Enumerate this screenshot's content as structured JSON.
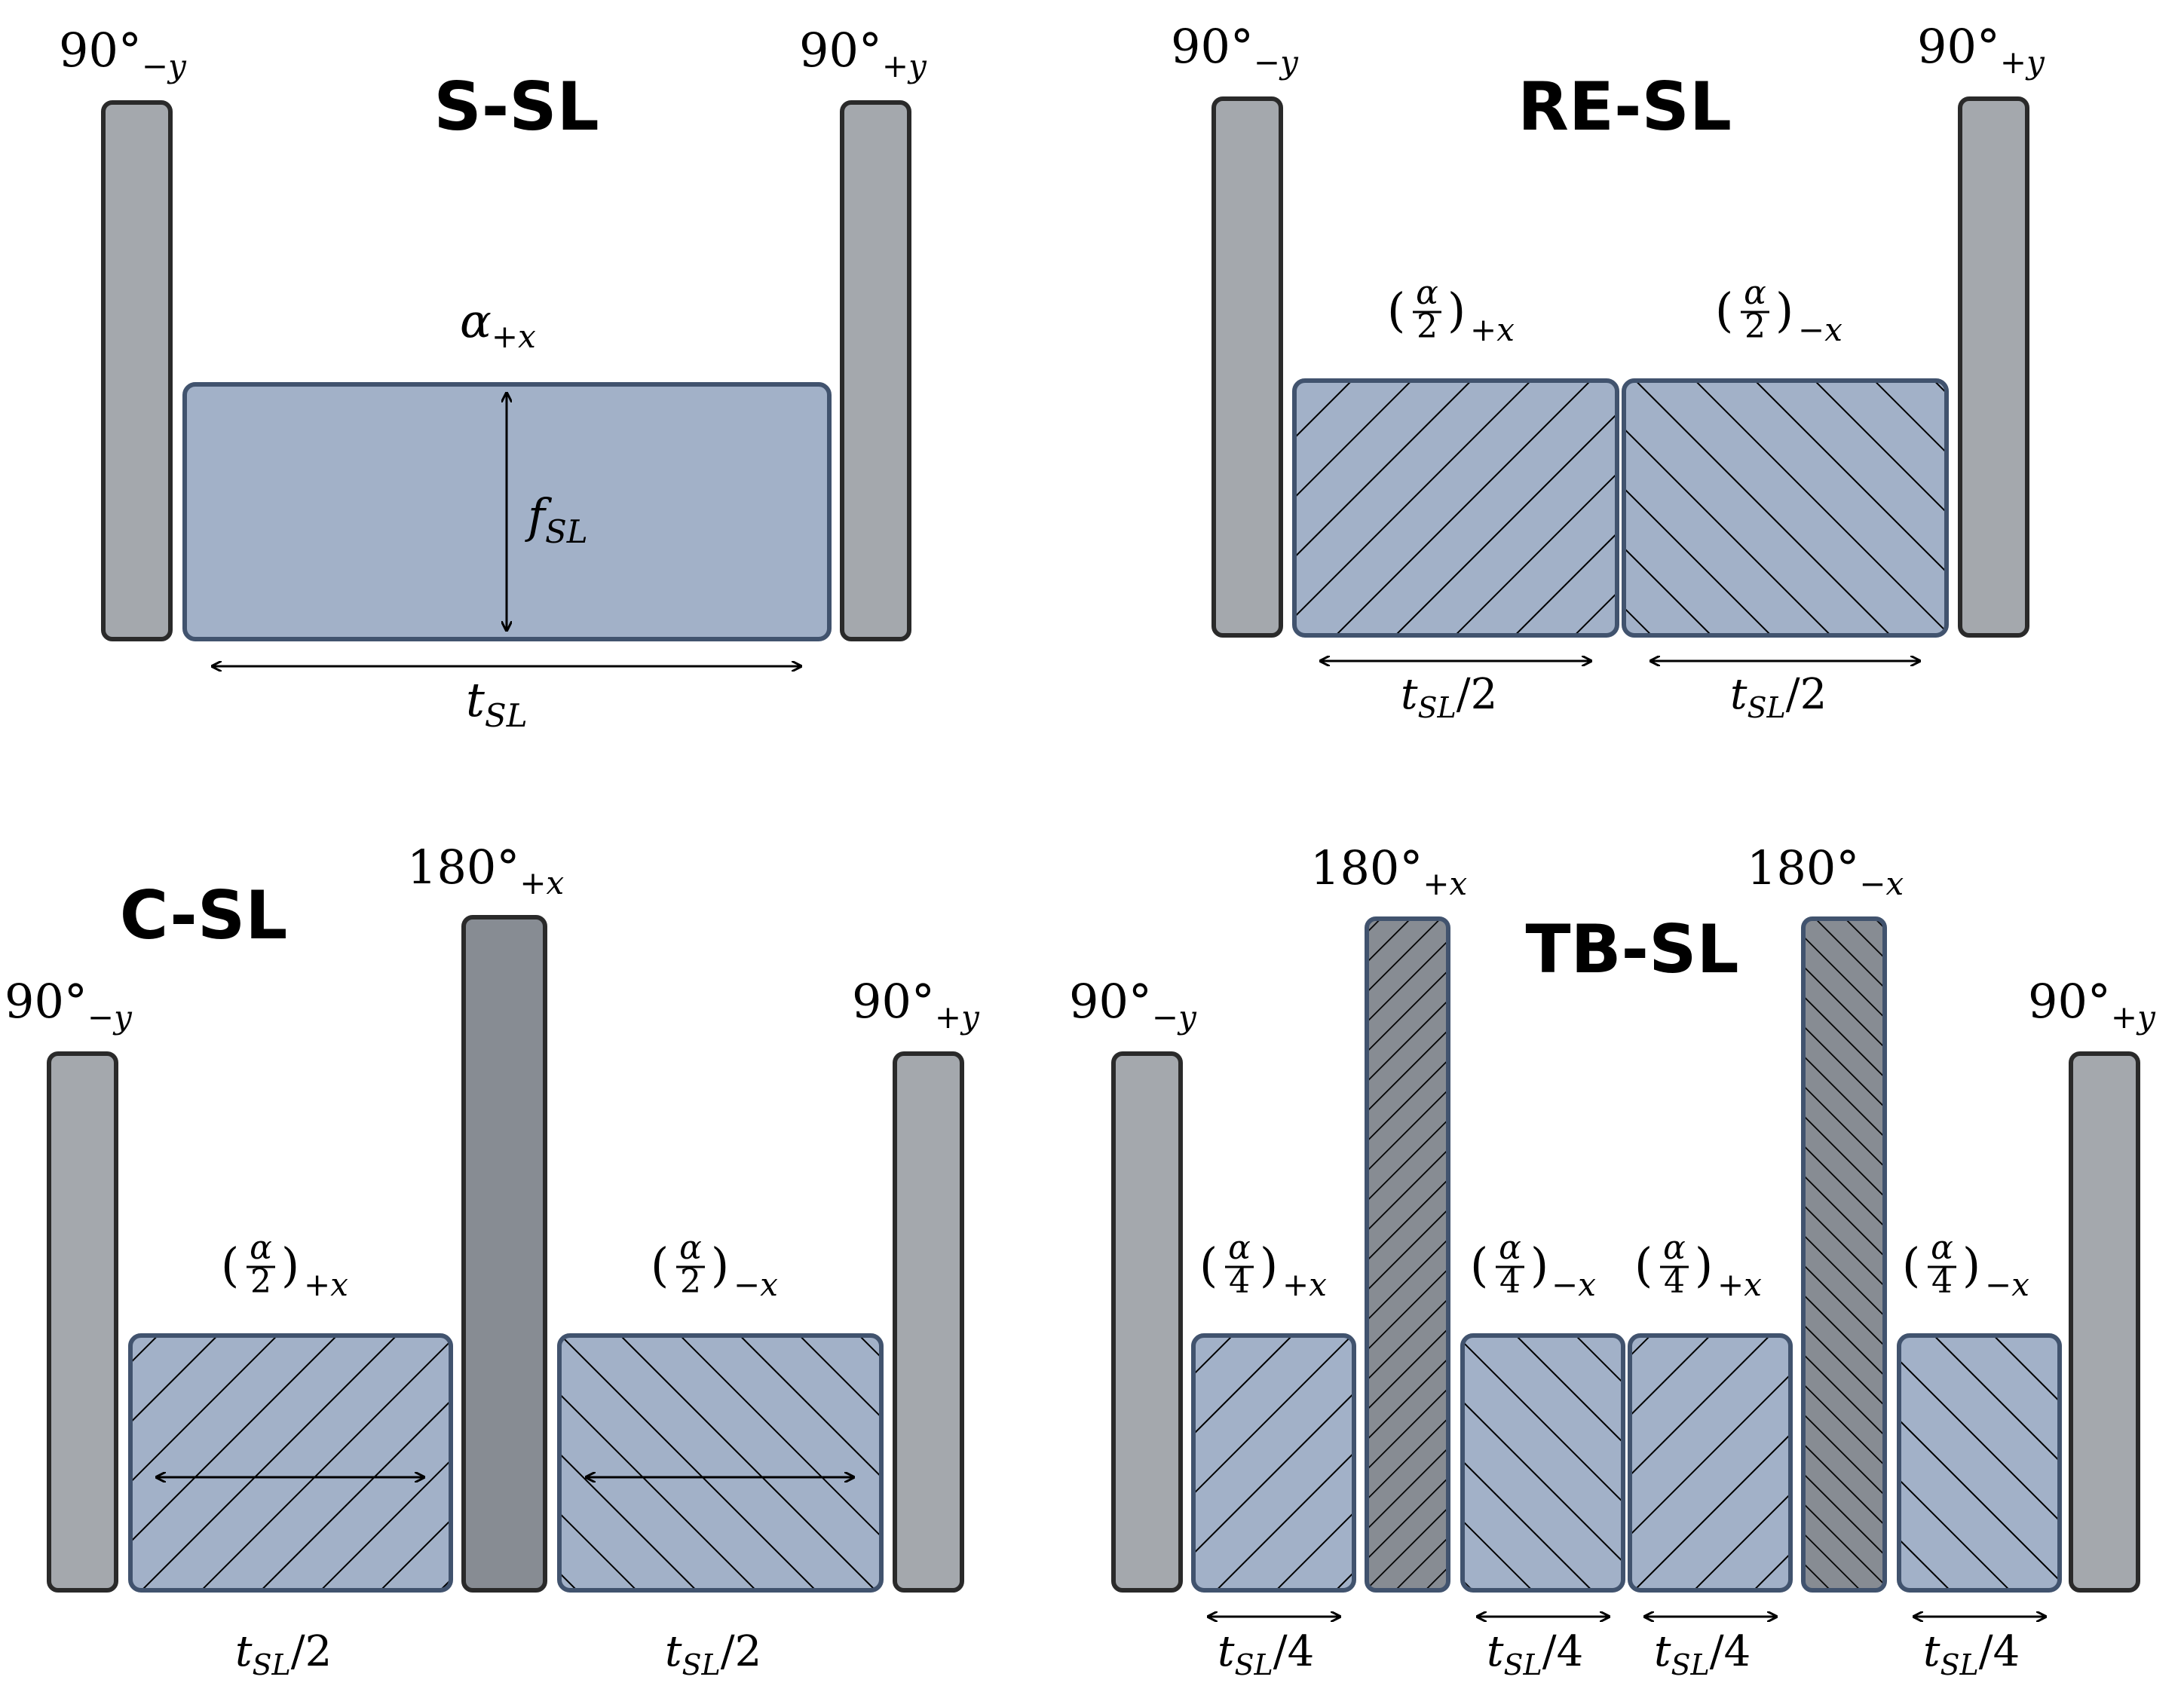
{
  "panels": {
    "s_sl": {
      "title": "S-SL",
      "left_pulse": {
        "angle": "90°",
        "phase": "−y"
      },
      "right_pulse": {
        "angle": "90°",
        "phase": "+y"
      },
      "spin_lock": {
        "symbol": "α",
        "phase": "+x"
      },
      "amplitude": {
        "symbol": "f",
        "sub": "SL"
      },
      "duration": {
        "symbol": "t",
        "sub": "SL"
      }
    },
    "re_sl": {
      "title": "RE-SL",
      "left_pulse": {
        "angle": "90°",
        "phase": "−y"
      },
      "right_pulse": {
        "angle": "90°",
        "phase": "+y"
      },
      "blocks": [
        {
          "num": "α",
          "den": "2",
          "phase": "+x",
          "duration": "/2"
        },
        {
          "num": "α",
          "den": "2",
          "phase": "−x",
          "duration": "/2"
        }
      ],
      "duration_symbol": {
        "symbol": "t",
        "sub": "SL"
      }
    },
    "c_sl": {
      "title": "C-SL",
      "left_pulse": {
        "angle": "90°",
        "phase": "−y"
      },
      "right_pulse": {
        "angle": "90°",
        "phase": "+y"
      },
      "refocus_pulse": {
        "angle": "180°",
        "phase": "+x"
      },
      "blocks": [
        {
          "num": "α",
          "den": "2",
          "phase": "+x",
          "duration": "/2"
        },
        {
          "num": "α",
          "den": "2",
          "phase": "−x",
          "duration": "/2"
        }
      ],
      "duration_symbol": {
        "symbol": "t",
        "sub": "SL"
      }
    },
    "tb_sl": {
      "title": "TB-SL",
      "left_pulse": {
        "angle": "90°",
        "phase": "−y"
      },
      "right_pulse": {
        "angle": "90°",
        "phase": "+y"
      },
      "refocus_pulses": [
        {
          "angle": "180°",
          "phase": "+x"
        },
        {
          "angle": "180°",
          "phase": "−x"
        }
      ],
      "blocks": [
        {
          "num": "α",
          "den": "4",
          "phase": "+x",
          "duration": "/4"
        },
        {
          "num": "α",
          "den": "4",
          "phase": "−x",
          "duration": "/4"
        },
        {
          "num": "α",
          "den": "4",
          "phase": "+x",
          "duration": "/4"
        },
        {
          "num": "α",
          "den": "4",
          "phase": "−x",
          "duration": "/4"
        }
      ],
      "duration_symbol": {
        "symbol": "t",
        "sub": "SL"
      }
    }
  },
  "colors": {
    "excitation_pulse": "#a4a8ad",
    "refocus_pulse": "#878c93",
    "spin_lock_block": "#a2b1c8",
    "block_border": "#41536e",
    "pulse_border": "#2a2a2a"
  }
}
